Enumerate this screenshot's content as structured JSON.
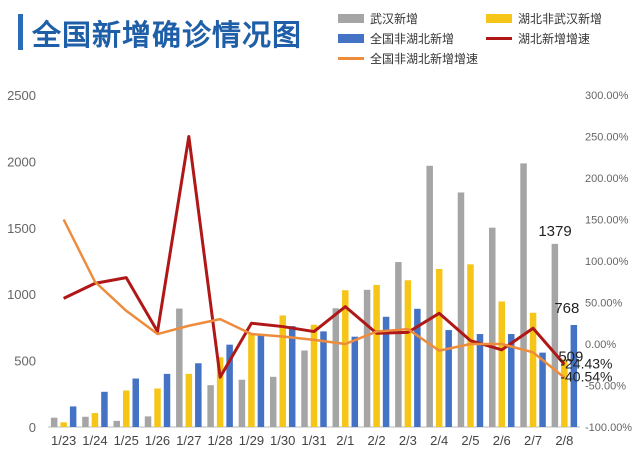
{
  "title": "全国新增确诊情况图",
  "legend": [
    {
      "name": "武汉新增",
      "kind": "bar",
      "color": "#a5a5a5"
    },
    {
      "name": "湖北非武汉新增",
      "kind": "bar",
      "color": "#f5c518"
    },
    {
      "name": "全国非湖北新增",
      "kind": "bar",
      "color": "#4472c4"
    },
    {
      "name": "湖北新增增速",
      "kind": "line",
      "color": "#b01818"
    },
    {
      "name": "全国非湖北新增增速",
      "kind": "line",
      "color": "#ed8c3c"
    }
  ],
  "chart_data": {
    "type": "bar",
    "title": "全国新增确诊情况图",
    "categories": [
      "1/23",
      "1/24",
      "1/25",
      "1/26",
      "1/27",
      "1/28",
      "1/29",
      "1/30",
      "1/31",
      "2/1",
      "2/2",
      "2/3",
      "2/4",
      "2/5",
      "2/6",
      "2/7",
      "2/8"
    ],
    "left_axis": {
      "min": 0,
      "max": 2500,
      "ticks": [
        0,
        500,
        1000,
        1500,
        2000,
        2500
      ]
    },
    "right_axis": {
      "min": -100,
      "max": 300,
      "unit": "%",
      "ticks": [
        -100,
        -50,
        0,
        50,
        100,
        150,
        200,
        250,
        300
      ],
      "tick_labels": [
        "-100.00%",
        "-50.00%",
        "0.00%",
        "50.00%",
        "100.00%",
        "150.00%",
        "200.00%",
        "250.00%",
        "300.00%"
      ]
    },
    "bar_series": [
      {
        "name": "武汉新增",
        "color": "#a5a5a5",
        "values": [
          70,
          77,
          46,
          80,
          892,
          315,
          356,
          378,
          576,
          894,
          1033,
          1242,
          1967,
          1766,
          1501,
          1985,
          1379
        ]
      },
      {
        "name": "湖北非武汉新增",
        "color": "#f5c518",
        "values": [
          35,
          105,
          275,
          290,
          400,
          525,
          700,
          840,
          770,
          1030,
          1070,
          1105,
          1190,
          1225,
          945,
          860,
          509
        ]
      },
      {
        "name": "全国非湖北新增",
        "color": "#4472c4",
        "values": [
          155,
          265,
          365,
          400,
          480,
          620,
          700,
          760,
          720,
          680,
          830,
          890,
          730,
          700,
          700,
          560,
          768
        ]
      }
    ],
    "line_series": [
      {
        "name": "湖北新增增速",
        "color": "#b01818",
        "axis": "right",
        "values": [
          55,
          73,
          80,
          15,
          250,
          -40,
          25,
          21,
          15,
          45,
          13,
          14,
          37,
          4,
          -7,
          19,
          -24.43
        ]
      },
      {
        "name": "全国非湖北新增增速",
        "color": "#ed8c3c",
        "axis": "right",
        "values": [
          150,
          75,
          40,
          12,
          22,
          30,
          12,
          9,
          5,
          0,
          15,
          18,
          -8,
          0,
          0,
          -10,
          -40.54
        ]
      }
    ],
    "data_labels": [
      {
        "text": "1379",
        "category": "2/8",
        "value": 1379,
        "axis": "left"
      },
      {
        "text": "768",
        "category": "2/8",
        "value": 768,
        "axis": "left"
      },
      {
        "text": "509",
        "category": "2/8",
        "value": 509,
        "axis": "left"
      },
      {
        "text": "-24.43%",
        "category": "2/8",
        "value": -24.43,
        "axis": "right"
      },
      {
        "text": "-40.54%",
        "category": "2/8",
        "value": -40.54,
        "axis": "right"
      }
    ],
    "grid": false,
    "legend_position": "top-right"
  }
}
